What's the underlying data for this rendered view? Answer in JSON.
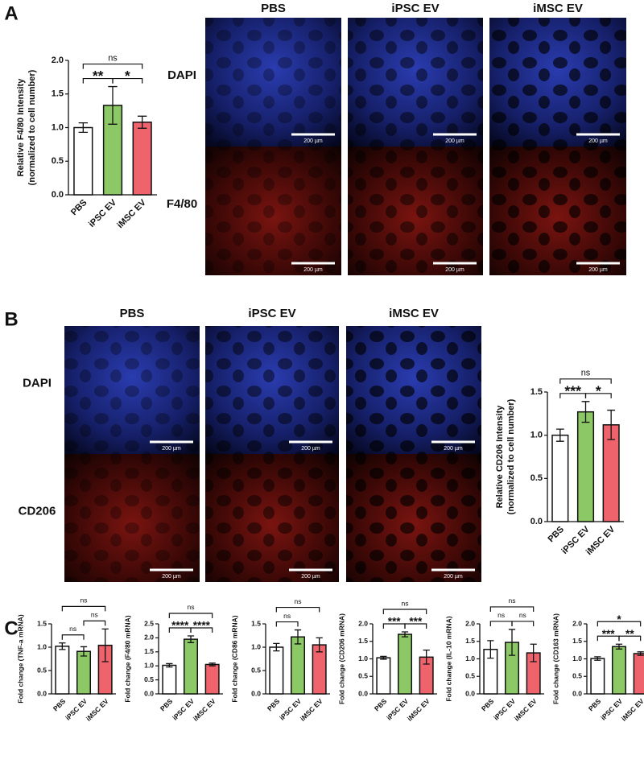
{
  "panel_a": {
    "label": "A",
    "columns": [
      "PBS",
      "iPSC EV",
      "iMSC EV"
    ],
    "rows": [
      "DAPI",
      "F4/80"
    ],
    "scale_bar": "200 µm"
  },
  "panel_b": {
    "label": "B",
    "columns": [
      "PBS",
      "iPSC EV",
      "iMSC EV"
    ],
    "rows": [
      "DAPI",
      "CD206"
    ],
    "scale_bar": "200 µm"
  },
  "panel_c": {
    "label": "C"
  },
  "chart_data": [
    {
      "type": "bar",
      "ylabel": [
        "Relative F4/80 Intensity",
        "(normalized to cell number)"
      ],
      "categories": [
        "PBS",
        "iPSC EV",
        "iMSC EV"
      ],
      "colors": [
        "#ffffff",
        "#8cc866",
        "#ef636c"
      ],
      "values": [
        1.0,
        1.33,
        1.08
      ],
      "errors": [
        0.07,
        0.28,
        0.09
      ],
      "ylim": [
        0,
        2.0
      ],
      "yticks": [
        {
          "value": 0,
          "label": "0.0"
        },
        {
          "value": 0.5,
          "label": "0.5"
        },
        {
          "value": 1,
          "label": "1.0"
        },
        {
          "value": 1.5,
          "label": "1.5"
        },
        {
          "value": 2,
          "label": "2.0"
        }
      ],
      "significance": [
        {
          "pair": [
            0,
            1
          ],
          "label": "**"
        },
        {
          "pair": [
            1,
            2
          ],
          "label": "*"
        },
        {
          "pair": [
            0,
            2
          ],
          "label": "ns"
        }
      ]
    },
    {
      "type": "bar",
      "ylabel": [
        "Relative CD206 Intensity",
        "(normalized to cell number)"
      ],
      "categories": [
        "PBS",
        "iPSC EV",
        "iMSC EV"
      ],
      "colors": [
        "#ffffff",
        "#8cc866",
        "#ef636c"
      ],
      "values": [
        1.0,
        1.27,
        1.12
      ],
      "errors": [
        0.07,
        0.12,
        0.17
      ],
      "ylim": [
        0,
        1.5
      ],
      "yticks": [
        {
          "value": 0,
          "label": "0.0"
        },
        {
          "value": 0.5,
          "label": "0.5"
        },
        {
          "value": 1,
          "label": "1.0"
        },
        {
          "value": 1.5,
          "label": "1.5"
        }
      ],
      "significance": [
        {
          "pair": [
            0,
            1
          ],
          "label": "***"
        },
        {
          "pair": [
            1,
            2
          ],
          "label": "*"
        },
        {
          "pair": [
            0,
            2
          ],
          "label": "ns"
        }
      ]
    },
    {
      "type": "bar",
      "ylabel": "Fold change (TNF-a mRNA)",
      "categories": [
        "PBS",
        "iPSC EV",
        "iMSC EV"
      ],
      "colors": [
        "#ffffff",
        "#8cc866",
        "#ef636c"
      ],
      "values": [
        1.02,
        0.91,
        1.04
      ],
      "errors": [
        0.07,
        0.1,
        0.35
      ],
      "ylim": [
        0,
        1.5
      ],
      "yticks": [
        {
          "value": 0,
          "label": "0.0"
        },
        {
          "value": 0.5,
          "label": "0.5"
        },
        {
          "value": 1,
          "label": "1.0"
        },
        {
          "value": 1.5,
          "label": "1.5"
        }
      ],
      "significance": [
        {
          "pair": [
            0,
            1
          ],
          "label": "ns"
        },
        {
          "pair": [
            1,
            2
          ],
          "label": "ns"
        },
        {
          "pair": [
            0,
            2
          ],
          "label": "ns"
        }
      ]
    },
    {
      "type": "bar",
      "ylabel": "Fold change (F4/80 mRNA)",
      "categories": [
        "PBS",
        "iPSC EV",
        "iMSC EV"
      ],
      "colors": [
        "#ffffff",
        "#8cc866",
        "#ef636c"
      ],
      "values": [
        1.02,
        1.95,
        1.05
      ],
      "errors": [
        0.06,
        0.12,
        0.05
      ],
      "ylim": [
        0,
        2.5
      ],
      "yticks": [
        {
          "value": 0,
          "label": "0.0"
        },
        {
          "value": 0.5,
          "label": "0.5"
        },
        {
          "value": 1,
          "label": "1.0"
        },
        {
          "value": 1.5,
          "label": "1.5"
        },
        {
          "value": 2,
          "label": "2.0"
        },
        {
          "value": 2.5,
          "label": "2.5"
        }
      ],
      "significance": [
        {
          "pair": [
            0,
            1
          ],
          "label": "****"
        },
        {
          "pair": [
            1,
            2
          ],
          "label": "****"
        },
        {
          "pair": [
            0,
            2
          ],
          "label": "ns"
        }
      ]
    },
    {
      "type": "bar",
      "ylabel": "Fold change (CD86 mRNA)",
      "categories": [
        "PBS",
        "iPSC EV",
        "iMSC EV"
      ],
      "colors": [
        "#ffffff",
        "#8cc866",
        "#ef636c"
      ],
      "values": [
        1.0,
        1.22,
        1.05
      ],
      "errors": [
        0.08,
        0.15,
        0.15
      ],
      "ylim": [
        0,
        1.5
      ],
      "yticks": [
        {
          "value": 0,
          "label": "0.0"
        },
        {
          "value": 0.5,
          "label": "0.5"
        },
        {
          "value": 1,
          "label": "1.0"
        },
        {
          "value": 1.5,
          "label": "1.5"
        }
      ],
      "significance": [
        {
          "pair": [
            0,
            1
          ],
          "label": "ns"
        },
        {
          "pair": [
            0,
            2
          ],
          "label": "ns"
        }
      ]
    },
    {
      "type": "bar",
      "ylabel": "Fold change (CD206 mRNA)",
      "categories": [
        "PBS",
        "iPSC EV",
        "iMSC EV"
      ],
      "colors": [
        "#ffffff",
        "#8cc866",
        "#ef636c"
      ],
      "values": [
        1.03,
        1.7,
        1.05
      ],
      "errors": [
        0.04,
        0.07,
        0.2
      ],
      "ylim": [
        0,
        2.0
      ],
      "yticks": [
        {
          "value": 0,
          "label": "0.0"
        },
        {
          "value": 0.5,
          "label": "0.5"
        },
        {
          "value": 1,
          "label": "1.0"
        },
        {
          "value": 1.5,
          "label": "1.5"
        },
        {
          "value": 2,
          "label": "2.0"
        }
      ],
      "significance": [
        {
          "pair": [
            0,
            1
          ],
          "label": "***"
        },
        {
          "pair": [
            1,
            2
          ],
          "label": "***"
        },
        {
          "pair": [
            0,
            2
          ],
          "label": "ns"
        }
      ]
    },
    {
      "type": "bar",
      "ylabel": "Fold change (IL-10 mRNA)",
      "categories": [
        "PBS",
        "iPSC EV",
        "iMSC EV"
      ],
      "colors": [
        "#ffffff",
        "#8cc866",
        "#ef636c"
      ],
      "values": [
        1.27,
        1.47,
        1.17
      ],
      "errors": [
        0.25,
        0.37,
        0.25
      ],
      "ylim": [
        0,
        2.0
      ],
      "yticks": [
        {
          "value": 0,
          "label": "0.0"
        },
        {
          "value": 0.5,
          "label": "0.5"
        },
        {
          "value": 1,
          "label": "1.0"
        },
        {
          "value": 1.5,
          "label": "1.5"
        },
        {
          "value": 2,
          "label": "2.0"
        }
      ],
      "significance": [
        {
          "pair": [
            0,
            1
          ],
          "label": "ns"
        },
        {
          "pair": [
            1,
            2
          ],
          "label": "ns"
        },
        {
          "pair": [
            0,
            2
          ],
          "label": "ns"
        }
      ]
    },
    {
      "type": "bar",
      "ylabel": "Fold change (CD163 mRNA)",
      "categories": [
        "PBS",
        "iPSC EV",
        "iMSC EV"
      ],
      "colors": [
        "#ffffff",
        "#8cc866",
        "#ef636c"
      ],
      "values": [
        1.01,
        1.35,
        1.15
      ],
      "errors": [
        0.05,
        0.07,
        0.05
      ],
      "ylim": [
        0,
        2.0
      ],
      "yticks": [
        {
          "value": 0,
          "label": "0.0"
        },
        {
          "value": 0.5,
          "label": "0.5"
        },
        {
          "value": 1,
          "label": "1.0"
        },
        {
          "value": 1.5,
          "label": "1.5"
        },
        {
          "value": 2,
          "label": "2.0"
        }
      ],
      "significance": [
        {
          "pair": [
            0,
            1
          ],
          "label": "***"
        },
        {
          "pair": [
            1,
            2
          ],
          "label": "**"
        },
        {
          "pair": [
            0,
            2
          ],
          "label": "*"
        }
      ]
    }
  ]
}
